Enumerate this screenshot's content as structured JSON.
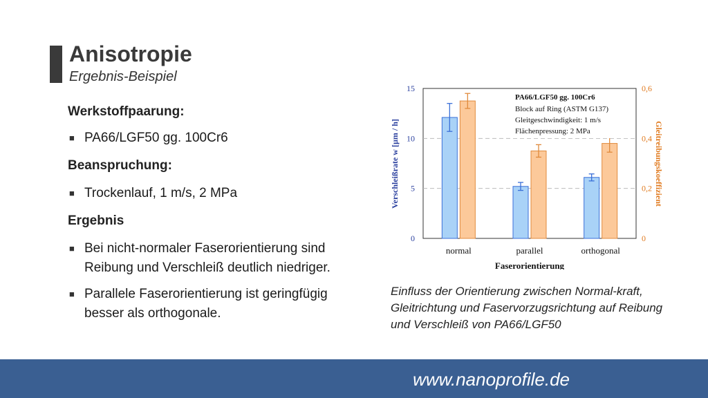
{
  "slide": {
    "title": "Anisotropie",
    "subtitle": "Ergebnis-Beispiel"
  },
  "content": {
    "heading1": "Werkstoffpaarung:",
    "bullet1": "PA66/LGF50 gg. 100Cr6",
    "heading2": "Beanspruchung:",
    "bullet2": "Trockenlauf, 1 m/s, 2 MPa",
    "heading3": "Ergebnis",
    "bullet3": "Bei nicht-normaler Faserorientierung sind Reibung und Verschleiß deutlich niedriger.",
    "bullet4": "Parallele Faserorientierung ist geringfügig besser als orthogonale."
  },
  "caption": "Einfluss der Orientierung zwischen Normal-kraft, Gleitrichtung und Faservorzugsrichtung auf Reibung und Verschleiß von PA66/LGF50",
  "footer": {
    "url": "www.nanoprofile.de"
  },
  "colors": {
    "footer": "#3a5f92",
    "wear": "#a9d2f7",
    "wear_edge": "#3a6fd8",
    "friction": "#fcc99a",
    "friction_edge": "#e08a3c",
    "left_axis": "#2a3f9e",
    "right_axis": "#e07a1f"
  },
  "chart_data": {
    "type": "bar",
    "categories": [
      "normal",
      "parallel",
      "orthogonal"
    ],
    "xlabel": "Faserorientierung",
    "ylabel_left": "Verschleißrate w [µm / h]",
    "ylabel_right": "Gleitreibungskoeffizient",
    "ylim_left": [
      0,
      15
    ],
    "ylim_right": [
      0,
      0.6
    ],
    "yticks_left": [
      "0",
      "5",
      "10",
      "15"
    ],
    "yticks_right": [
      "0",
      "0,2",
      "0,4",
      "0,6"
    ],
    "grid": true,
    "legend_box": {
      "title": "PA66/LGF50 gg. 100Cr6",
      "lines": [
        "Block auf Ring (ASTM G137)",
        "Gleitgeschwindigkeit: 1 m/s",
        "Flächenpressung: 2 MPa"
      ]
    },
    "series": [
      {
        "axis": "left",
        "values": [
          12.1,
          5.2,
          6.1
        ],
        "errors": [
          1.4,
          0.4,
          0.35
        ]
      },
      {
        "axis": "right",
        "values": [
          0.55,
          0.35,
          0.38
        ],
        "errors": [
          0.03,
          0.025,
          0.035
        ]
      }
    ]
  }
}
